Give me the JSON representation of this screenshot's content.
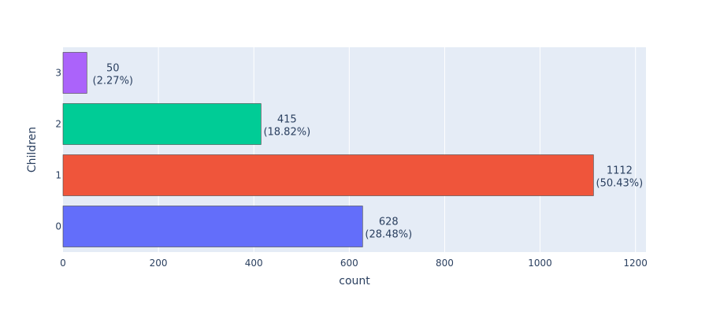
{
  "chart_data": {
    "type": "bar",
    "orientation": "horizontal",
    "title": "",
    "xlabel": "count",
    "ylabel": "Children",
    "categories": [
      "0",
      "1",
      "2",
      "3"
    ],
    "values": [
      628,
      1112,
      415,
      50
    ],
    "labels": [
      {
        "count": "628",
        "percent": "(28.48%)"
      },
      {
        "count": "1112",
        "percent": "(50.43%)"
      },
      {
        "count": "415",
        "percent": "(18.82%)"
      },
      {
        "count": "50",
        "percent": "(2.27%)"
      }
    ],
    "colors": [
      "#636efa",
      "#ef553b",
      "#00cc96",
      "#ab63fa"
    ],
    "xlim": [
      0,
      1222
    ],
    "xticks": [
      "0",
      "200",
      "400",
      "600",
      "800",
      "1000",
      "1200"
    ],
    "xtick_values": [
      0,
      200,
      400,
      600,
      800,
      1000,
      1200
    ],
    "grid": true,
    "plot_bgcolor": "#e5ecf6",
    "text_color": "#2a3f5f"
  }
}
